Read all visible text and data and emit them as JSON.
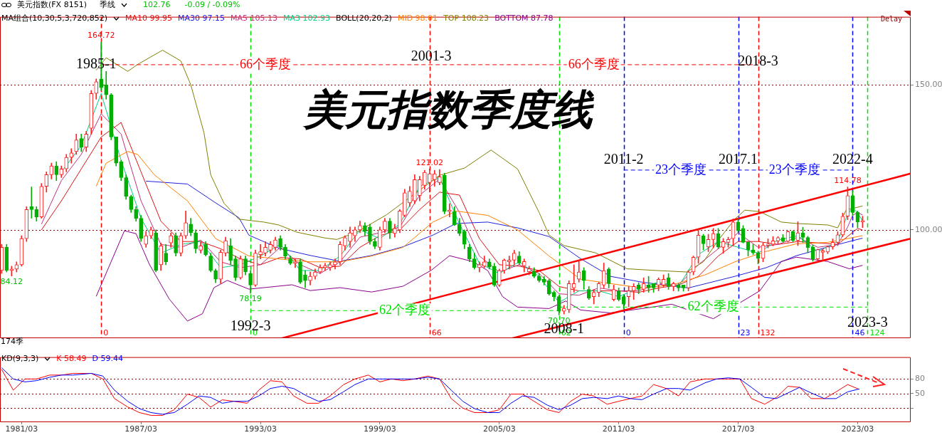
{
  "chart_data": [
    {
      "type": "candlestick",
      "title": "美元指数季度线",
      "legend": "top left",
      "legend_title": "MA组合(10,30,5,3,720,852)",
      "grid": "y",
      "tick_labels": "y",
      "xlim": [
        "1980-02",
        "2025-11"
      ],
      "ylim": [
        62.7,
        173.4
      ],
      "yticks": [
        {
          "value": 150,
          "label": "150.00"
        },
        {
          "value": 100,
          "label": "100.00"
        }
      ],
      "x": [
        "1980-03",
        "1980-06",
        "1980-09",
        "1980-12",
        "1981-03",
        "1981-06",
        "1981-09",
        "1981-12",
        "1982-03",
        "1982-06",
        "1982-09",
        "1982-12",
        "1983-03",
        "1983-06",
        "1983-09",
        "1983-12",
        "1984-03",
        "1984-06",
        "1984-09",
        "1984-12",
        "1985-03",
        "1985-06",
        "1985-09",
        "1985-12",
        "1986-03",
        "1986-06",
        "1986-09",
        "1986-12",
        "1987-03",
        "1987-06",
        "1987-09",
        "1987-12",
        "1988-03",
        "1988-06",
        "1988-09",
        "1988-12",
        "1989-03",
        "1989-06",
        "1989-09",
        "1989-12",
        "1990-03",
        "1990-06",
        "1990-09",
        "1990-12",
        "1991-03",
        "1991-06",
        "1991-09",
        "1991-12",
        "1992-03",
        "1992-06",
        "1992-09",
        "1992-12",
        "1993-03",
        "1993-06",
        "1993-09",
        "1993-12",
        "1994-03",
        "1994-06",
        "1994-09",
        "1994-12",
        "1995-03",
        "1995-06",
        "1995-09",
        "1995-12",
        "1996-03",
        "1996-06",
        "1996-09",
        "1996-12",
        "1997-03",
        "1997-06",
        "1997-09",
        "1997-12",
        "1998-03",
        "1998-06",
        "1998-09",
        "1998-12",
        "1999-03",
        "1999-06",
        "1999-09",
        "1999-12",
        "2000-03",
        "2000-06",
        "2000-09",
        "2000-12",
        "2001-03",
        "2001-06",
        "2001-09",
        "2001-12",
        "2002-03",
        "2002-06",
        "2002-09",
        "2002-12",
        "2003-03",
        "2003-06",
        "2003-09",
        "2003-12",
        "2004-03",
        "2004-06",
        "2004-09",
        "2004-12",
        "2005-03",
        "2005-06",
        "2005-09",
        "2005-12",
        "2006-03",
        "2006-06",
        "2006-09",
        "2006-12",
        "2007-03",
        "2007-06",
        "2007-09",
        "2007-12",
        "2008-03",
        "2008-06",
        "2008-09",
        "2008-12",
        "2009-03",
        "2009-06",
        "2009-09",
        "2009-12",
        "2010-03",
        "2010-06",
        "2010-09",
        "2010-12",
        "2011-03",
        "2011-06",
        "2011-09",
        "2011-12",
        "2012-03",
        "2012-06",
        "2012-09",
        "2012-12",
        "2013-03",
        "2013-06",
        "2013-09",
        "2013-12",
        "2014-03",
        "2014-06",
        "2014-09",
        "2014-12",
        "2015-03",
        "2015-06",
        "2015-09",
        "2015-12",
        "2016-03",
        "2016-06",
        "2016-09",
        "2016-12",
        "2017-03",
        "2017-06",
        "2017-09",
        "2017-12",
        "2018-03",
        "2018-06",
        "2018-09",
        "2018-12",
        "2019-03",
        "2019-06",
        "2019-09",
        "2019-12",
        "2020-03",
        "2020-06",
        "2020-09",
        "2020-12",
        "2021-03",
        "2021-06",
        "2021-09",
        "2021-12",
        "2022-03",
        "2022-06",
        "2022-09",
        "2022-12",
        "2023-03",
        "2023-06"
      ],
      "ohlc": [
        [
          86,
          95,
          85,
          94
        ],
        [
          94,
          95,
          85.5,
          86
        ],
        [
          86,
          87.5,
          84.12,
          86.5
        ],
        [
          86.5,
          89,
          85.5,
          88
        ],
        [
          88,
          98,
          87.5,
          97
        ],
        [
          97,
          108,
          96,
          107
        ],
        [
          108,
          114.8,
          104,
          107
        ],
        [
          107,
          108,
          103,
          104.5
        ],
        [
          104.5,
          116,
          104,
          115
        ],
        [
          115,
          120,
          113,
          119
        ],
        [
          119,
          123,
          117.5,
          122
        ],
        [
          122,
          123.5,
          117,
          119
        ],
        [
          119,
          122,
          118,
          121
        ],
        [
          121,
          126,
          120,
          125
        ],
        [
          125,
          128,
          123,
          126.5
        ],
        [
          127,
          133,
          126,
          131
        ],
        [
          131.5,
          133,
          127,
          128.5
        ],
        [
          128.5,
          134,
          127,
          133
        ],
        [
          135,
          148,
          133,
          147
        ],
        [
          147,
          152,
          145,
          151
        ],
        [
          152,
          164.72,
          148,
          149
        ],
        [
          150,
          154.6,
          145,
          146.5
        ],
        [
          146.5,
          147,
          131,
          132
        ],
        [
          132,
          132,
          122,
          123
        ],
        [
          123.5,
          124,
          117,
          118
        ],
        [
          118,
          119,
          110.5,
          111.5
        ],
        [
          111.5,
          112,
          106,
          107
        ],
        [
          107,
          108,
          103,
          104
        ],
        [
          104,
          105,
          96,
          97
        ],
        [
          95,
          99.5,
          94,
          98
        ],
        [
          98,
          101,
          97,
          100
        ],
        [
          99,
          100,
          85.5,
          86
        ],
        [
          88,
          95.5,
          86,
          94.5
        ],
        [
          92,
          95,
          88,
          89
        ],
        [
          95.5,
          99,
          94,
          98
        ],
        [
          98,
          99,
          91,
          92
        ],
        [
          92,
          99,
          91,
          98
        ],
        [
          98,
          106.5,
          97,
          102.5
        ],
        [
          102,
          104,
          98,
          99
        ],
        [
          99,
          100,
          92,
          93.5
        ],
        [
          93,
          96,
          92,
          94.5
        ],
        [
          95,
          96,
          91,
          91.5
        ],
        [
          91,
          92,
          85.5,
          86
        ],
        [
          86,
          86.5,
          81.8,
          83
        ],
        [
          83,
          93,
          81.5,
          92.3
        ],
        [
          92,
          97.5,
          91,
          96.3
        ],
        [
          94.5,
          97,
          88,
          89.5
        ],
        [
          90,
          91,
          82.5,
          83.5
        ],
        [
          83.5,
          91,
          83,
          90
        ],
        [
          90,
          91,
          84.5,
          85.5
        ],
        [
          85,
          86,
          78.19,
          81
        ],
        [
          81,
          93,
          80.5,
          92
        ],
        [
          91.5,
          95,
          90,
          92.5
        ],
        [
          92,
          96,
          91,
          94
        ],
        [
          93,
          96,
          92,
          95
        ],
        [
          94,
          97.5,
          93,
          96.5
        ],
        [
          97,
          98,
          93,
          94
        ],
        [
          94,
          95,
          90,
          91
        ],
        [
          90,
          91,
          88,
          88.5
        ],
        [
          88.5,
          90,
          87,
          89
        ],
        [
          89,
          90,
          81.5,
          82
        ],
        [
          84.5,
          86,
          80.1,
          82.5
        ],
        [
          82.5,
          85.5,
          81,
          84
        ],
        [
          84,
          86.5,
          83,
          85.5
        ],
        [
          85.5,
          88,
          85,
          87
        ],
        [
          87,
          88.5,
          86,
          87.7
        ],
        [
          87,
          89,
          86,
          88
        ],
        [
          88,
          90,
          86.5,
          89
        ],
        [
          89,
          96,
          88,
          95
        ],
        [
          94.5,
          98,
          93,
          97.3
        ],
        [
          96,
          101,
          94,
          99
        ],
        [
          98,
          101,
          96,
          100
        ],
        [
          100,
          103,
          99,
          101.5
        ],
        [
          101.5,
          102.5,
          98,
          99.5
        ],
        [
          101,
          102,
          95,
          96
        ],
        [
          96,
          97,
          93.5,
          94.3
        ],
        [
          94,
          101,
          93,
          100
        ],
        [
          100,
          104,
          99,
          103
        ],
        [
          103,
          104,
          97,
          99
        ],
        [
          98.8,
          102,
          97.5,
          100.5
        ],
        [
          100,
          107,
          99,
          106.5
        ],
        [
          105,
          114,
          104.5,
          112.8
        ],
        [
          109.3,
          115,
          108,
          113.3
        ],
        [
          110,
          119,
          109,
          117.3
        ],
        [
          111.8,
          118.5,
          110,
          117.3
        ],
        [
          115.3,
          120.5,
          114,
          119.8
        ],
        [
          116.3,
          121.02,
          113,
          119.3
        ],
        [
          117.3,
          120.5,
          115,
          119.3
        ],
        [
          116.3,
          120.8,
          115.5,
          118.3
        ],
        [
          118.8,
          119.5,
          105.5,
          106.3
        ],
        [
          106.3,
          109,
          104.5,
          106.8
        ],
        [
          106.3,
          108,
          101.5,
          101.8
        ],
        [
          102,
          104,
          98,
          98.8
        ],
        [
          99.5,
          100,
          93.5,
          95
        ],
        [
          94,
          95,
          89,
          90
        ],
        [
          90,
          92,
          86.5,
          87
        ],
        [
          87,
          89,
          85.5,
          88
        ],
        [
          87.5,
          91,
          87,
          89
        ],
        [
          89,
          90,
          86.5,
          87.2
        ],
        [
          87.5,
          88.5,
          80.5,
          81
        ],
        [
          81,
          86.5,
          80.5,
          86
        ],
        [
          86,
          90,
          85,
          89.6
        ],
        [
          89,
          91,
          86.5,
          89.6
        ],
        [
          89.6,
          93,
          88,
          92
        ],
        [
          91,
          92.5,
          88,
          88.6
        ],
        [
          87.6,
          90,
          85.5,
          89.1
        ],
        [
          85.6,
          87.5,
          84.5,
          86.6
        ],
        [
          85.6,
          87,
          83.5,
          84
        ],
        [
          84,
          85,
          82,
          82.5
        ],
        [
          83,
          84,
          81,
          82
        ],
        [
          82.5,
          83,
          77.5,
          78
        ],
        [
          78.5,
          79,
          75.5,
          77
        ],
        [
          77,
          77.5,
          70.7,
          72
        ],
        [
          72,
          74,
          71,
          73
        ],
        [
          72.5,
          82.5,
          71.5,
          81.5
        ],
        [
          80,
          88,
          78.5,
          81.5
        ],
        [
          83,
          89.6,
          82,
          85.5
        ],
        [
          86,
          87,
          79.5,
          82.5
        ],
        [
          79.5,
          80.5,
          76,
          76.5
        ],
        [
          77,
          79.5,
          74.5,
          78.5
        ],
        [
          78.5,
          82,
          77,
          81.5
        ],
        [
          81,
          88.6,
          80,
          86
        ],
        [
          86.5,
          87,
          80,
          81.5
        ],
        [
          76,
          81,
          75.5,
          79.5
        ],
        [
          79,
          80,
          75.5,
          76
        ],
        [
          77,
          77.5,
          72.7,
          74.4
        ],
        [
          77,
          80.5,
          73.5,
          79
        ],
        [
          79,
          81.5,
          76,
          80.5
        ],
        [
          81,
          81.8,
          78,
          79.5
        ],
        [
          79.5,
          83.5,
          78.5,
          81.5
        ],
        [
          81,
          84,
          78.5,
          80
        ],
        [
          81.5,
          81.5,
          78.5,
          80
        ],
        [
          81,
          83.5,
          79,
          83
        ],
        [
          81,
          84.5,
          80.5,
          83
        ],
        [
          83.5,
          85,
          79.5,
          80.5
        ],
        [
          80.5,
          82,
          79,
          81.5
        ],
        [
          81,
          81.5,
          78.9,
          80
        ],
        [
          81,
          81,
          78.9,
          80
        ],
        [
          80,
          86,
          79,
          85.5
        ],
        [
          85.5,
          91,
          84.5,
          90.6
        ],
        [
          90.6,
          100.4,
          88.5,
          98.2
        ],
        [
          98,
          98.5,
          93.1,
          95.2
        ],
        [
          94.1,
          98.5,
          92.5,
          96.7
        ],
        [
          96.7,
          100.5,
          93.8,
          98.7
        ],
        [
          98.7,
          100.5,
          93.5,
          94.1
        ],
        [
          94,
          97,
          91.9,
          96
        ],
        [
          95.7,
          97.5,
          94,
          96.7
        ],
        [
          97,
          103.8,
          94.5,
          102.7
        ],
        [
          102.7,
          103.8,
          99,
          99.7
        ],
        [
          100.5,
          101.5,
          95.5,
          95.7
        ],
        [
          95.7,
          96,
          91,
          93.1
        ],
        [
          93.1,
          95,
          91.5,
          92.1
        ],
        [
          92.1,
          92.7,
          88.3,
          90.2
        ],
        [
          90.2,
          95.5,
          89,
          94.7
        ],
        [
          94.7,
          96.9,
          93.8,
          95.1
        ],
        [
          95,
          97.7,
          94.5,
          96.2
        ],
        [
          96.2,
          97.7,
          95.2,
          97.3
        ],
        [
          97.3,
          98.4,
          95.8,
          96.1
        ],
        [
          96.1,
          99.7,
          95.8,
          99.4
        ],
        [
          99.4,
          99.7,
          95.9,
          96.4
        ],
        [
          96.4,
          102.8,
          94.6,
          99
        ],
        [
          99,
          100.9,
          95.7,
          97.4
        ],
        [
          97.4,
          97.8,
          92.1,
          93.9
        ],
        [
          94,
          94.7,
          89.2,
          90
        ],
        [
          90,
          93.4,
          89.2,
          93.2
        ],
        [
          92.3,
          93.4,
          89.5,
          92.8
        ],
        [
          92.4,
          94.5,
          91.8,
          94.2
        ],
        [
          94.2,
          96.9,
          93.3,
          95.7
        ],
        [
          95.7,
          99.4,
          94.6,
          98.3
        ],
        [
          98.3,
          105.8,
          97.7,
          104.7
        ],
        [
          104.7,
          114.78,
          103.5,
          111.8
        ],
        [
          111.8,
          113.5,
          105,
          106
        ],
        [
          106,
          106.5,
          100.8,
          102.7
        ],
        [
          102.7,
          104.7,
          100.8,
          103.2
        ]
      ],
      "series": [
        {
          "type": "line",
          "name": "MA10 99.95",
          "color": "#e01010",
          "x": [
            "1982-03",
            "1983-03",
            "1984-03",
            "1985-03",
            "1986-03",
            "1987-03",
            "1988-03",
            "1989-03",
            "1990-03",
            "1991-03",
            "1992-03",
            "1993-03",
            "1994-03",
            "1995-03",
            "1996-03",
            "1997-03",
            "1998-03",
            "1999-03",
            "2000-03",
            "2001-03",
            "2002-03",
            "2003-03",
            "2004-03",
            "2005-03",
            "2006-03",
            "2007-03",
            "2008-03",
            "2009-03",
            "2010-03",
            "2011-03",
            "2012-03",
            "2013-03",
            "2014-03",
            "2015-03",
            "2016-03",
            "2017-03",
            "2018-03",
            "2019-03",
            "2020-03",
            "2021-03",
            "2022-03",
            "2023-03",
            "2023-06"
          ],
          "values": [
            100,
            110,
            121,
            132,
            137,
            120,
            103,
            96,
            96,
            93.5,
            90,
            88,
            90.5,
            90,
            87,
            87.5,
            94,
            98,
            100,
            107,
            113,
            112,
            97,
            88,
            87.5,
            86,
            80.5,
            79,
            79,
            79,
            78.5,
            80,
            81,
            84,
            91,
            96,
            96,
            95,
            96,
            95.5,
            95,
            100.5,
            99.95
          ]
        },
        {
          "type": "line",
          "name": "MA30 97.15",
          "color": "#2020e0",
          "x": [
            "1987-06",
            "1989-07",
            "1990-12",
            "1992-02",
            "1992-08",
            "1994-02",
            "1995-09",
            "1997-03",
            "1998-10",
            "2000-05",
            "2001-11",
            "2003-01",
            "2004-08",
            "2006-02",
            "2007-09",
            "2009-04",
            "2010-10",
            "2012-05",
            "2014-09",
            "2017-01",
            "2018-08",
            "2020-02",
            "2021-09",
            "2023-06"
          ],
          "values": [
            116.8,
            115.8,
            109.3,
            104.2,
            98.2,
            93.7,
            91.2,
            89.2,
            91.2,
            94.2,
            98.2,
            102.2,
            102.7,
            100.7,
            97.7,
            90.1,
            84,
            82,
            80,
            84,
            87,
            91.1,
            94.1,
            97.15
          ]
        },
        {
          "type": "line",
          "name": "MA5 105.13",
          "color": "#c0307f",
          "x": [
            "1982-03",
            "1983-03",
            "1984-03",
            "1985-03",
            "1986-03",
            "1987-03",
            "1988-03",
            "1989-03",
            "1990-03",
            "1991-03",
            "1992-03",
            "1993-03",
            "1994-03",
            "1995-03",
            "1996-03",
            "1997-03",
            "1998-03",
            "1999-03",
            "2000-03",
            "2001-03",
            "2002-03",
            "2003-03",
            "2004-03",
            "2005-03",
            "2006-03",
            "2007-03",
            "2008-03",
            "2009-03",
            "2010-03",
            "2011-03",
            "2012-03",
            "2013-03",
            "2014-03",
            "2015-03",
            "2017-03",
            "2018-03",
            "2019-03",
            "2020-03",
            "2021-03",
            "2022-03",
            "2022-09",
            "2022-12",
            "2023-03",
            "2023-06"
          ],
          "values": [
            102,
            117,
            126,
            140,
            133,
            110,
            95,
            94,
            96.5,
            89,
            87,
            88,
            94,
            88,
            85,
            89,
            97.5,
            99,
            101,
            112,
            117.5,
            106,
            91,
            85.5,
            88,
            85,
            78,
            77.5,
            80,
            79,
            79,
            81.5,
            81,
            88,
            99,
            94,
            95,
            97.5,
            94,
            95,
            101,
            105,
            106,
            105.13
          ]
        },
        {
          "type": "line",
          "name": "MA3 102.93",
          "color": "#00d080",
          "x": [
            "1983-03",
            "1984-03",
            "1985-03",
            "1986-03",
            "1987-03",
            "1988-03",
            "1989-03",
            "1990-03",
            "1991-03",
            "1992-03",
            "1993-03",
            "1994-03",
            "1995-03",
            "1996-03",
            "1997-03",
            "1998-03",
            "1999-03",
            "2000-03",
            "2001-03",
            "2002-03",
            "2003-03",
            "2004-03",
            "2005-03",
            "2006-03",
            "2007-03",
            "2008-03",
            "2009-03",
            "2010-03",
            "2011-03",
            "2012-03",
            "2013-03",
            "2014-03",
            "2015-03",
            "2016-03",
            "2018-03",
            "2019-03",
            "2020-03",
            "2021-03",
            "2022-03",
            "2022-09",
            "2022-12",
            "2023-03",
            "2023-06"
          ],
          "values": [
            120,
            129,
            147,
            124,
            104,
            92,
            95,
            96,
            87,
            88,
            91,
            95,
            86,
            86,
            91,
            100,
            97,
            102,
            115,
            118,
            102,
            88.5,
            85,
            89,
            84,
            75,
            79,
            79,
            77,
            80,
            82,
            80.5,
            91.5,
            96,
            92,
            96.5,
            98,
            92.5,
            96,
            105.5,
            107.5,
            106,
            102.93
          ]
        },
        {
          "type": "line",
          "name": "MID 98.01",
          "color": "#ff8000",
          "x": [
            "1984-12",
            "1985-06",
            "1986-07",
            "1987-01",
            "1987-11",
            "1989-07",
            "1990-12",
            "1992-08",
            "1994-02",
            "1995-09",
            "1997-03",
            "1998-10",
            "2000-05",
            "2001-11",
            "2003-01",
            "2004-08",
            "2006-02",
            "2007-09",
            "2009-04",
            "2010-10",
            "2012-05",
            "2013-11",
            "2015-07",
            "2017-01",
            "2018-08",
            "2020-02",
            "2021-09",
            "2023-06"
          ],
          "values": [
            115,
            123,
            127,
            126,
            119,
            110,
            97,
            91,
            90,
            89,
            89,
            91,
            94,
            102.7,
            106.5,
            105,
            100,
            91,
            83,
            81.5,
            80,
            81,
            84.5,
            89,
            92.6,
            95.2,
            95.7,
            98.01
          ]
        },
        {
          "type": "line",
          "name": "TOP 108.23",
          "color": "#808000",
          "x": [
            "1984-12",
            "1985-06",
            "1986-07",
            "1987-01",
            "1988-04",
            "1989-03",
            "1989-09",
            "1990-05",
            "1990-09",
            "1991-05",
            "1992-02",
            "1993-05",
            "1994-02",
            "1995-01",
            "1996-06",
            "1997-01",
            "1998-01",
            "1999-07",
            "2002-03",
            "2003-06",
            "2004-10",
            "2006-02",
            "2007-03",
            "2007-09",
            "2008-06",
            "2010-01",
            "2011-08",
            "2013-02",
            "2014-08",
            "2015-06",
            "2016-04",
            "2017-01",
            "2017-07",
            "2018-04",
            "2019-05",
            "2020-02",
            "2021-09",
            "2022-03",
            "2022-08",
            "2023-06"
          ],
          "values": [
            155,
            159.3,
            154.6,
            157,
            161.9,
            158.2,
            150,
            133.4,
            119,
            109.2,
            103.7,
            102.7,
            101.7,
            99.2,
            97.2,
            96.7,
            99.2,
            105.2,
            118.8,
            121.3,
            127.5,
            121,
            106,
            98.2,
            94.6,
            92.1,
            86.6,
            86,
            85.5,
            89,
            97.2,
            103.7,
            106.8,
            106.3,
            102.7,
            102.2,
            101.7,
            100.7,
            106.8,
            108.23
          ]
        },
        {
          "type": "line",
          "name": "BOTTOM 87.78",
          "color": "#8b008b",
          "x": [
            "1984-12",
            "1986-05",
            "1986-12",
            "1987-08",
            "1988-08",
            "1989-07",
            "1990-04",
            "1990-11",
            "1991-07",
            "1992-08",
            "1993-05",
            "1994-10",
            "1995-09",
            "1997-03",
            "1998-10",
            "2000-05",
            "2001-10",
            "2002-09",
            "2003-11",
            "2004-08",
            "2005-05",
            "2006-02",
            "2007-09",
            "2008-07",
            "2009-04",
            "2010-10",
            "2012-05",
            "2013-11",
            "2015-12",
            "2018-04",
            "2019-05",
            "2020-02",
            "2021-09",
            "2022-10",
            "2023-06"
          ],
          "values": [
            77.1,
            99.7,
            98.7,
            88.2,
            76.2,
            68.6,
            71.1,
            80.1,
            82.6,
            79.6,
            80.1,
            81.1,
            79.1,
            80.1,
            78.6,
            80.6,
            86.1,
            91.1,
            89.1,
            86,
            77,
            73.4,
            72.9,
            75.5,
            72.4,
            71.4,
            72.9,
            74.4,
            69.4,
            79,
            89.1,
            90.6,
            89.1,
            86.6,
            87.78
          ]
        },
        {
          "type": "line",
          "color": "#ff0000",
          "x": [
            "1994-04",
            "2025-11"
          ],
          "values": [
            62.7,
            119.4
          ]
        },
        {
          "type": "line",
          "color": "#ff0000",
          "x": [
            "2005-11",
            "2025-11"
          ],
          "values": [
            62.7,
            97
          ]
        },
        {
          "type": "line",
          "name": "66个季度",
          "color": "#ff0000",
          "line_style": "dashed",
          "x": [
            "1985-03",
            "2001-09",
            "2018-03"
          ],
          "values": [
            156.9,
            156.9,
            156.9
          ]
        },
        {
          "type": "line",
          "name": "23个季度",
          "color": "#0000ff",
          "line_style": "dashed",
          "x": [
            "2011-06",
            "2017-03",
            "2022-12"
          ],
          "values": [
            120.6,
            120.6,
            120.6
          ]
        },
        {
          "type": "line",
          "name": "62个季度",
          "color": "#00e000",
          "line_style": "dashed",
          "x": [
            "1992-09",
            "2008-03"
          ],
          "values": [
            72.2,
            72.2
          ]
        },
        {
          "type": "line",
          "name": "62个季度",
          "color": "#00e000",
          "line_style": "dashed",
          "x": [
            "2008-03",
            "2023-09"
          ],
          "values": [
            73.4,
            73.4
          ]
        }
      ],
      "ref_lines": [
        {
          "axis": "x",
          "value": "1985-03",
          "label": "0",
          "color": "#ff0000",
          "line_style": "dashed"
        },
        {
          "axis": "x",
          "value": "1992-09",
          "label": "0",
          "color": "#00e000",
          "line_style": "dashed"
        },
        {
          "axis": "x",
          "value": "2001-09",
          "label": "66",
          "color": "#ff0000",
          "line_style": "dashed"
        },
        {
          "axis": "x",
          "value": "2008-03",
          "label": "62",
          "color": "#00e000",
          "line_style": "dashed"
        },
        {
          "axis": "x",
          "value": "2011-06",
          "label": "0",
          "color": "#0000ff",
          "line_style": "dashed"
        },
        {
          "axis": "x",
          "value": "2017-03",
          "label": "23",
          "color": "#0000ff",
          "line_style": "dashed"
        },
        {
          "axis": "x",
          "value": "2018-03",
          "label": "132",
          "color": "#ff0000",
          "line_style": "dashed"
        },
        {
          "axis": "x",
          "value": "2022-12",
          "label": "46",
          "color": "#0000ff",
          "line_style": "dashed"
        },
        {
          "axis": "x",
          "value": "2023-09",
          "label": "124",
          "color": "#00e000",
          "line_style": "dashed"
        }
      ],
      "annotations": [
        "美元指数(FX 8151)",
        "季线",
        "102.76",
        "-0.09 / -0.09%",
        "BOLL(20,20,2)",
        "Delay",
        "174季",
        {
          "text": "1985-1",
          "x": "1984-12",
          "y": 156.9
        },
        {
          "text": "2001-3",
          "x": "2001-10",
          "y": 159.7
        },
        {
          "text": "66个季度",
          "x": "2009-12",
          "y": 156.9
        },
        {
          "text": "23个季度",
          "x": "2020-01",
          "y": 120.6
        },
        {
          "text": "2018-3",
          "x": "2018-03",
          "y": 157.9
        },
        {
          "text": "2011-2",
          "x": "2011-06",
          "y": 124.1
        },
        {
          "text": "2017.1",
          "x": "2017-03",
          "y": 124.1
        },
        {
          "text": "2022-4",
          "x": "2022-12",
          "y": 124.1
        },
        {
          "text": "164.72",
          "x": "1985-03",
          "y": 164.72
        },
        {
          "text": "121.02",
          "x": "2001-09",
          "y": 121.02
        },
        {
          "text": "114.78",
          "x": "2022-09",
          "y": 114.78
        },
        {
          "text": "84.12",
          "x": "1980-09",
          "y": 84.12
        },
        {
          "text": "78.19",
          "x": "1992-09",
          "y": 78.19
        },
        {
          "text": "70.70",
          "x": "2008-03",
          "y": 70.7
        },
        {
          "text": "1992-3",
          "x": "1992-09",
          "y": 66.7
        },
        {
          "text": "2008-1",
          "x": "2008-06",
          "y": 65.7
        },
        {
          "text": "2023-3",
          "x": "2023-09",
          "y": 68
        }
      ]
    },
    {
      "type": "line",
      "legend": "top left",
      "legend_title": "KD(9,3,3)",
      "grid": "y",
      "xlim": [
        "1980-02",
        "2025-11"
      ],
      "ylim": [
        -9,
        125
      ],
      "xticks": [
        {
          "value": "1981-03",
          "label": "1981/03"
        },
        {
          "value": "1987-03",
          "label": "1987/03"
        },
        {
          "value": "1993-03",
          "label": "1993/03"
        },
        {
          "value": "1999-03",
          "label": "1999/03"
        },
        {
          "value": "2005-03",
          "label": "2005/03"
        },
        {
          "value": "2011-03",
          "label": "2011/03"
        },
        {
          "value": "2017-03",
          "label": "2017/03"
        },
        {
          "value": "2023-03",
          "label": "2023/03"
        }
      ],
      "yticks": [
        80,
        50,
        {
          "value": 20,
          "label": null
        }
      ],
      "x": [
        "1980-03",
        "1980-10",
        "1981-05",
        "1981-12",
        "1982-08",
        "1983-03",
        "1983-10",
        "1984-09",
        "1985-04",
        "1985-11",
        "1986-07",
        "1987-02",
        "1987-09",
        "1988-04",
        "1988-11",
        "1989-07",
        "1990-02",
        "1990-09",
        "1991-04",
        "1991-11",
        "1992-07",
        "1993-02",
        "1993-09",
        "1994-04",
        "1994-11",
        "1995-07",
        "1996-02",
        "1996-09",
        "1997-05",
        "1997-12",
        "1998-08",
        "1999-03",
        "1999-10",
        "2000-05",
        "2000-12",
        "2001-08",
        "2002-03",
        "2002-10",
        "2003-05",
        "2003-12",
        "2004-08",
        "2005-03",
        "2005-10",
        "2006-05",
        "2006-12",
        "2007-08",
        "2008-03",
        "2008-10",
        "2009-05",
        "2009-12",
        "2010-08",
        "2011-03",
        "2011-10",
        "2012-05",
        "2012-12",
        "2013-08",
        "2014-03",
        "2014-10",
        "2015-07",
        "2016-02",
        "2016-09",
        "2017-04",
        "2017-11",
        "2018-07",
        "2019-02",
        "2019-09",
        "2020-04",
        "2020-11",
        "2021-07",
        "2022-02",
        "2022-09",
        "2023-04"
      ],
      "series": [
        {
          "name": "K 58.49",
          "color": "#ff0000",
          "values": [
            99.6,
            57,
            80,
            80,
            88,
            88,
            91.5,
            91.5,
            80,
            39.6,
            22.3,
            10.8,
            5,
            5,
            16.5,
            48.8,
            42,
            22,
            37,
            34,
            30,
            57,
            76.5,
            74,
            45,
            30,
            30,
            45,
            68,
            80,
            88,
            74,
            80,
            76.5,
            80,
            86,
            80,
            39.6,
            20,
            10.8,
            10.8,
            16.5,
            48.8,
            48.8,
            34,
            16.5,
            10.8,
            34,
            48.8,
            45,
            28,
            34,
            39.6,
            45,
            68.5,
            60,
            45,
            74,
            80,
            80,
            80,
            80,
            39.6,
            28,
            42,
            65,
            62.7,
            39.6,
            39.6,
            53.5,
            68.5,
            58.49
          ]
        },
        {
          "name": "D 59.44",
          "color": "#0000ff",
          "values": [
            103,
            80,
            74,
            76.5,
            83.5,
            88,
            88,
            91.5,
            86,
            57,
            34,
            19,
            10.8,
            7.3,
            10.8,
            28,
            45,
            42,
            30,
            34,
            34,
            45,
            60.4,
            65,
            60.4,
            45,
            34,
            37.3,
            53.5,
            68.5,
            80,
            80,
            80,
            80,
            80,
            83.5,
            80,
            57,
            34,
            19,
            10.8,
            10.8,
            30,
            45,
            42,
            26,
            16.5,
            26,
            39.6,
            42,
            39.6,
            45,
            39.6,
            37.3,
            48.8,
            60.4,
            60.4,
            57,
            72,
            80,
            82.3,
            80,
            62.7,
            42,
            39.6,
            51.2,
            62.7,
            51.2,
            39.6,
            39.6,
            53.5,
            59.44
          ]
        }
      ]
    }
  ]
}
